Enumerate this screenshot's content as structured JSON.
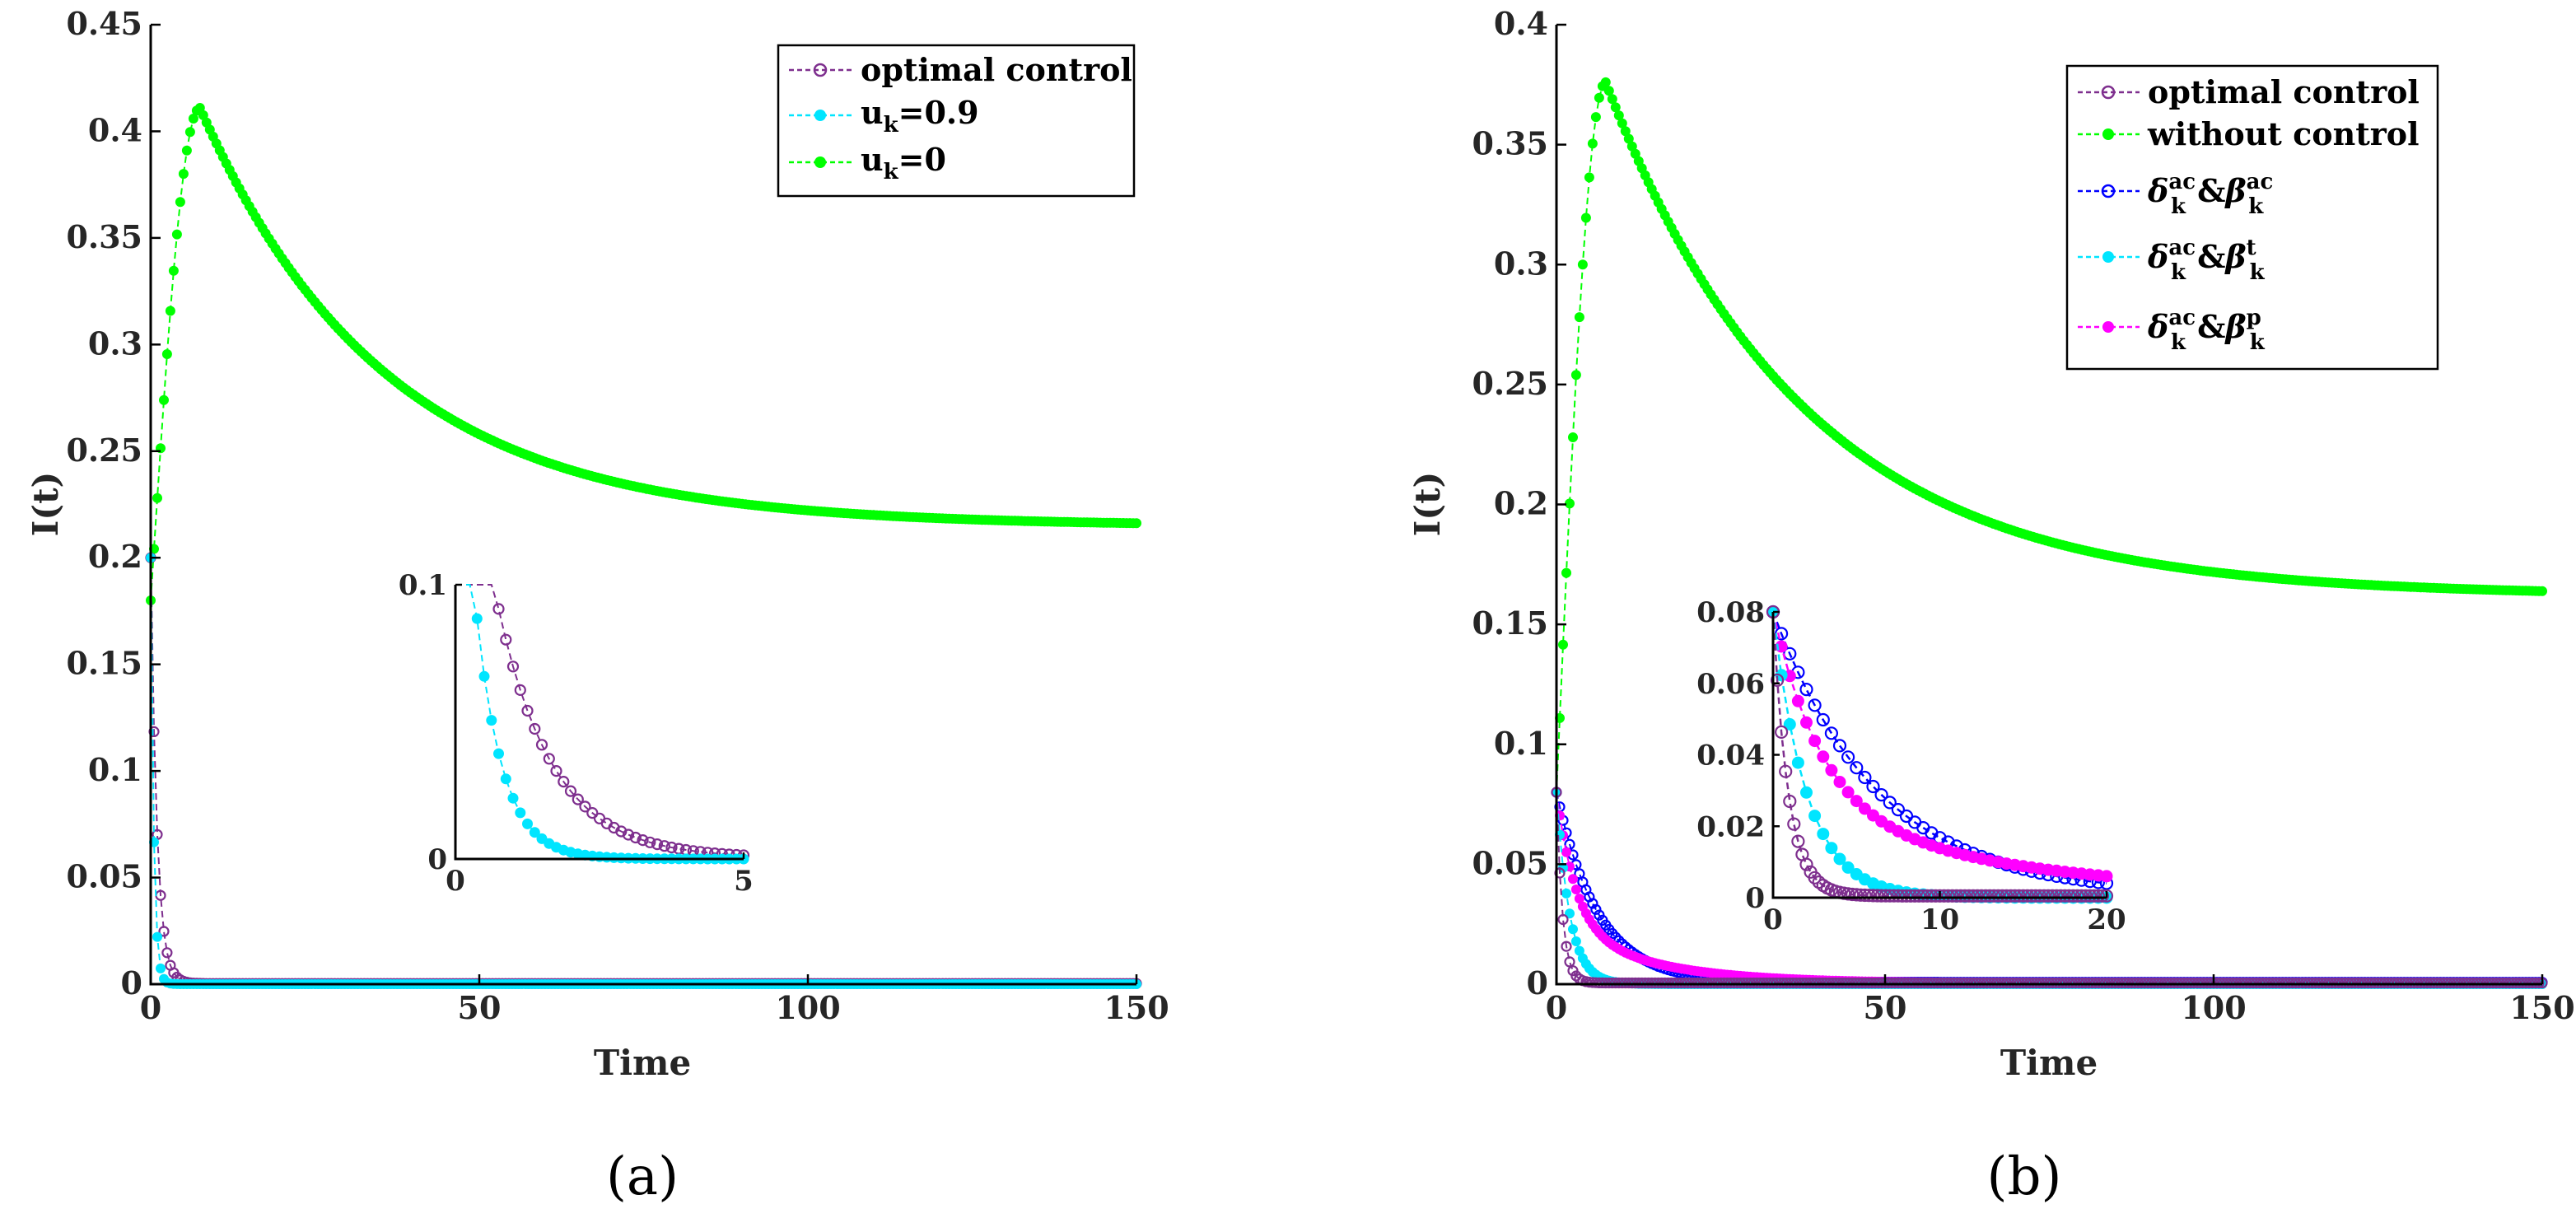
{
  "chart_data": [
    {
      "id": "a",
      "type": "line",
      "panel_label": "(a)",
      "xlabel": "Time",
      "ylabel": "I(t)",
      "xlim": [
        0,
        150
      ],
      "ylim": [
        0,
        0.45
      ],
      "xticks": [
        "0",
        "50",
        "100",
        "150"
      ],
      "yticks": [
        "0",
        "0.05",
        "0.1",
        "0.15",
        "0.2",
        "0.25",
        "0.3",
        "0.35",
        "0.4",
        "0.45"
      ],
      "legend_position": "top-right",
      "series": [
        {
          "key": "opt",
          "name": "optimal control",
          "label_main": "optimal control",
          "label_sub": "",
          "label_rest": "",
          "color": "#7e2f8e",
          "marker": "open-circle",
          "model": {
            "kind": "decay",
            "i0": 0.2,
            "lambda": 1.05,
            "c": 0.0003
          }
        },
        {
          "key": "u09",
          "name": "u_k=0.9",
          "label_main": "u",
          "label_sub": "k",
          "label_rest": "=0.9",
          "color": "#00e5ff",
          "marker": "filled-circle",
          "model": {
            "kind": "decay",
            "i0": 0.2,
            "lambda": 2.2,
            "c": 0.0
          }
        },
        {
          "key": "u0",
          "name": "u_k=0",
          "label_main": "u",
          "label_sub": "k",
          "label_rest": "=0",
          "color": "#00ff00",
          "marker": "filled-circle",
          "model": {
            "kind": "peak",
            "i0": 0.18,
            "peak": 0.411,
            "tpeak": 7.5,
            "c": 0.215,
            "tau": 28
          }
        }
      ],
      "inset": {
        "xlim": [
          0,
          5
        ],
        "ylim": [
          0,
          0.1
        ],
        "xticks": [
          "0",
          "5"
        ],
        "yticks": [
          "0",
          "0.1"
        ]
      }
    },
    {
      "id": "b",
      "type": "line",
      "panel_label": "(b)",
      "xlabel": "Time",
      "ylabel": "I(t)",
      "xlim": [
        0,
        150
      ],
      "ylim": [
        0,
        0.4
      ],
      "xticks": [
        "0",
        "50",
        "100",
        "150"
      ],
      "yticks": [
        "0",
        "0.05",
        "0.1",
        "0.15",
        "0.2",
        "0.25",
        "0.3",
        "0.35",
        "0.4"
      ],
      "legend_position": "top-right",
      "series": [
        {
          "key": "opt",
          "name": "optimal control",
          "label": "optimal control",
          "color": "#7e2f8e",
          "marker": "open-circle",
          "model": {
            "kind": "decay",
            "i0": 0.08,
            "lambda": 1.1,
            "c": 0.0005
          }
        },
        {
          "key": "noc",
          "name": "without control",
          "label": "without control",
          "color": "#00ff00",
          "marker": "filled-circle",
          "model": {
            "kind": "peak",
            "i0": 0.08,
            "peak": 0.376,
            "tpeak": 7.5,
            "c": 0.162,
            "tau": 30
          }
        },
        {
          "key": "acac",
          "name": "δ_k^ac & β_k^ac",
          "sup2": "ac",
          "color": "#0000ff",
          "marker": "open-circle",
          "model": {
            "kind": "decay",
            "i0": 0.08,
            "lambda": 0.16,
            "c": 0.0008
          }
        },
        {
          "key": "act",
          "name": "δ_k^ac & β_k^t",
          "sup2": "t",
          "color": "#00e5ff",
          "marker": "filled-circle",
          "model": {
            "kind": "decay",
            "i0": 0.08,
            "lambda": 0.5,
            "c": 0.0
          }
        },
        {
          "key": "acp",
          "name": "δ_k^ac & β_k^p",
          "sup2": "p",
          "color": "#ff00ff",
          "marker": "filled-circle",
          "model": {
            "kind": "decay2",
            "i0": 0.08,
            "lambda": 0.35,
            "a2": 0.025,
            "lambda2": 0.075,
            "c": 0.0004
          }
        }
      ],
      "legend_symbols": {
        "delta": "δ",
        "beta": "β",
        "amp": "&",
        "sub": "k",
        "sup1": "ac"
      },
      "inset": {
        "xlim": [
          0,
          20
        ],
        "ylim": [
          0,
          0.08
        ],
        "xticks": [
          "0",
          "10",
          "20"
        ],
        "yticks": [
          "0",
          "0.02",
          "0.04",
          "0.06",
          "0.08"
        ]
      }
    }
  ]
}
